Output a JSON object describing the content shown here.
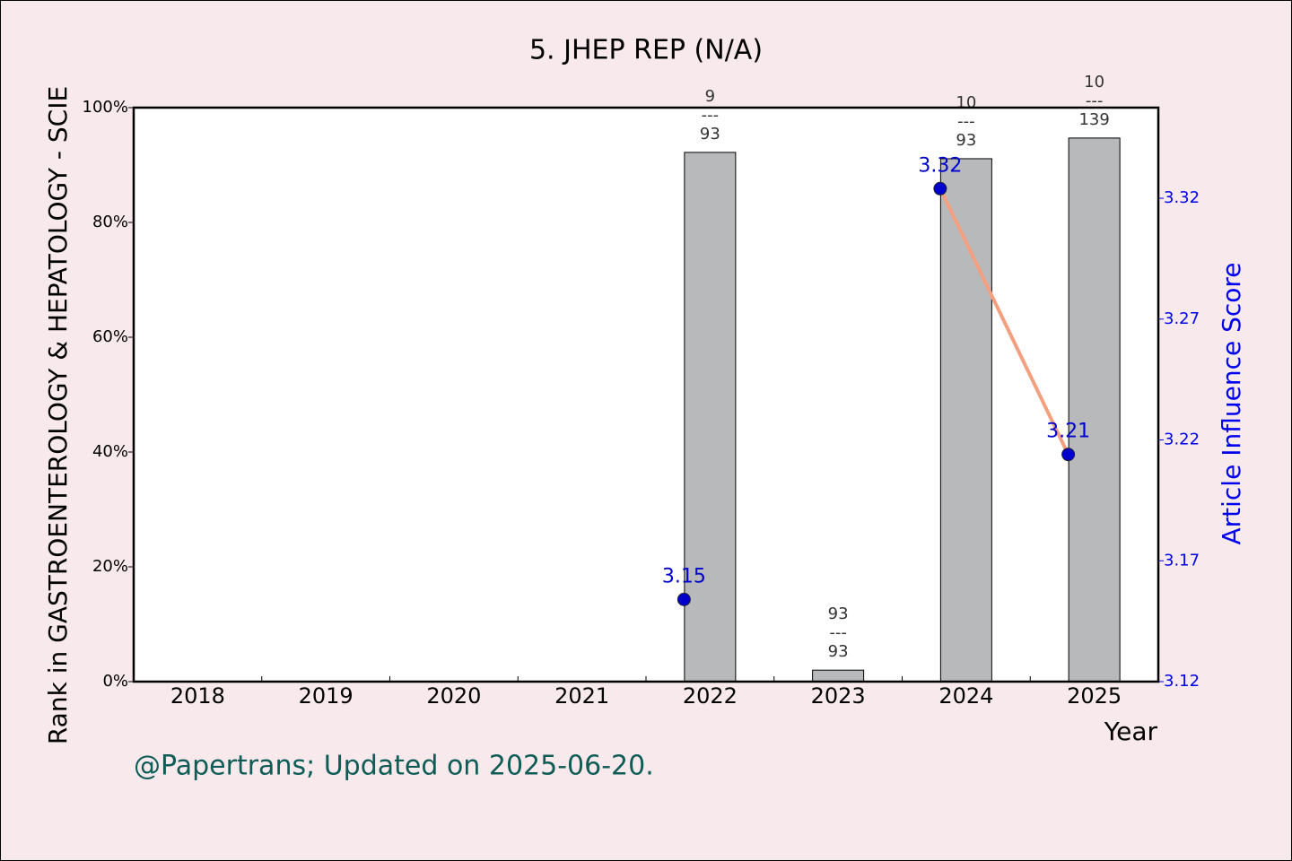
{
  "chart_data": {
    "type": "combo",
    "title": "5. JHEP REP (N/A)",
    "x_label": "Year",
    "y_label": "Rank in GASTROENTEROLOGY & HEPATOLOGY - SCIE",
    "y2_label": "Article Influence Score",
    "footer": "@Papertrans; Updated on 2025-06-20.",
    "categories": [
      "2018",
      "2019",
      "2020",
      "2021",
      "2022",
      "2023",
      "2024",
      "2025"
    ],
    "ylim": [
      0,
      100
    ],
    "yticks": [
      {
        "value": 0,
        "label": "0%"
      },
      {
        "value": 20,
        "label": "20%"
      },
      {
        "value": 40,
        "label": "40%"
      },
      {
        "value": 60,
        "label": "60%"
      },
      {
        "value": 80,
        "label": "80%"
      },
      {
        "value": 100,
        "label": "100%"
      }
    ],
    "y2lim": [
      3.12,
      3.3575
    ],
    "y2ticks": [
      3.12,
      3.17,
      3.22,
      3.27,
      3.32
    ],
    "series": [
      {
        "type": "bar",
        "color": "#b8b9bb",
        "values": [
          null,
          null,
          null,
          null,
          92.2,
          2.0,
          91.1,
          94.7
        ],
        "rank_labels": [
          null,
          null,
          null,
          null,
          [
            "9",
            "---",
            "93"
          ],
          [
            "93",
            "---",
            "93"
          ],
          [
            "10",
            "---",
            "93"
          ],
          [
            "10",
            "---",
            "139"
          ]
        ]
      },
      {
        "type": "line",
        "axis": "y2",
        "color": "#f4a080",
        "marker_color": "#0000cc",
        "values": [
          null,
          null,
          null,
          null,
          3.154,
          null,
          3.324,
          3.214
        ],
        "value_labels": [
          null,
          null,
          null,
          null,
          "3.15",
          null,
          "3.32",
          "3.21"
        ]
      }
    ]
  }
}
